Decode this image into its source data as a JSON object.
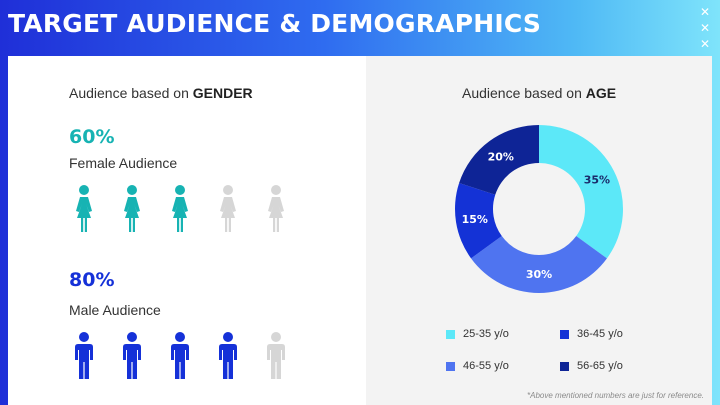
{
  "title": "TARGET AUDIENCE & DEMOGRAPHICS",
  "window_marks": [
    "✕",
    "✕",
    "✕"
  ],
  "gender": {
    "heading_prefix": "Audience based on ",
    "heading_bold": "GENDER",
    "female": {
      "percent": "60%",
      "label": "Female Audience",
      "filled": 3,
      "total": 5,
      "color": "#17b3b3",
      "empty_color": "#d6d6d6"
    },
    "male": {
      "percent": "80%",
      "label": "Male Audience",
      "filled": 4,
      "total": 5,
      "color": "#1531d8",
      "empty_color": "#d6d6d6"
    }
  },
  "age": {
    "heading_prefix": "Audience based on ",
    "heading_bold": "AGE"
  },
  "chart_data": {
    "type": "pie",
    "donut": true,
    "categories": [
      "25-35 y/o",
      "46-55 y/o",
      "36-45 y/o",
      "56-65 y/o"
    ],
    "values": [
      35,
      30,
      15,
      20
    ],
    "labels": [
      "35%",
      "30%",
      "15%",
      "20%"
    ],
    "colors": [
      "#5ce8f8",
      "#4f74f0",
      "#1432d6",
      "#0e2496"
    ],
    "label_colors": [
      "#1a2a6a",
      "#ffffff",
      "#ffffff",
      "#ffffff"
    ],
    "legend": [
      {
        "label": "25-35 y/o",
        "color": "#5ce8f8"
      },
      {
        "label": "36-45 y/o",
        "color": "#1432d6"
      },
      {
        "label": "46-55 y/o",
        "color": "#4f74f0"
      },
      {
        "label": "56-65 y/o",
        "color": "#0e2496"
      }
    ],
    "legend_placement": "bottom"
  },
  "footnote": "*Above mentioned numbers are just for reference."
}
